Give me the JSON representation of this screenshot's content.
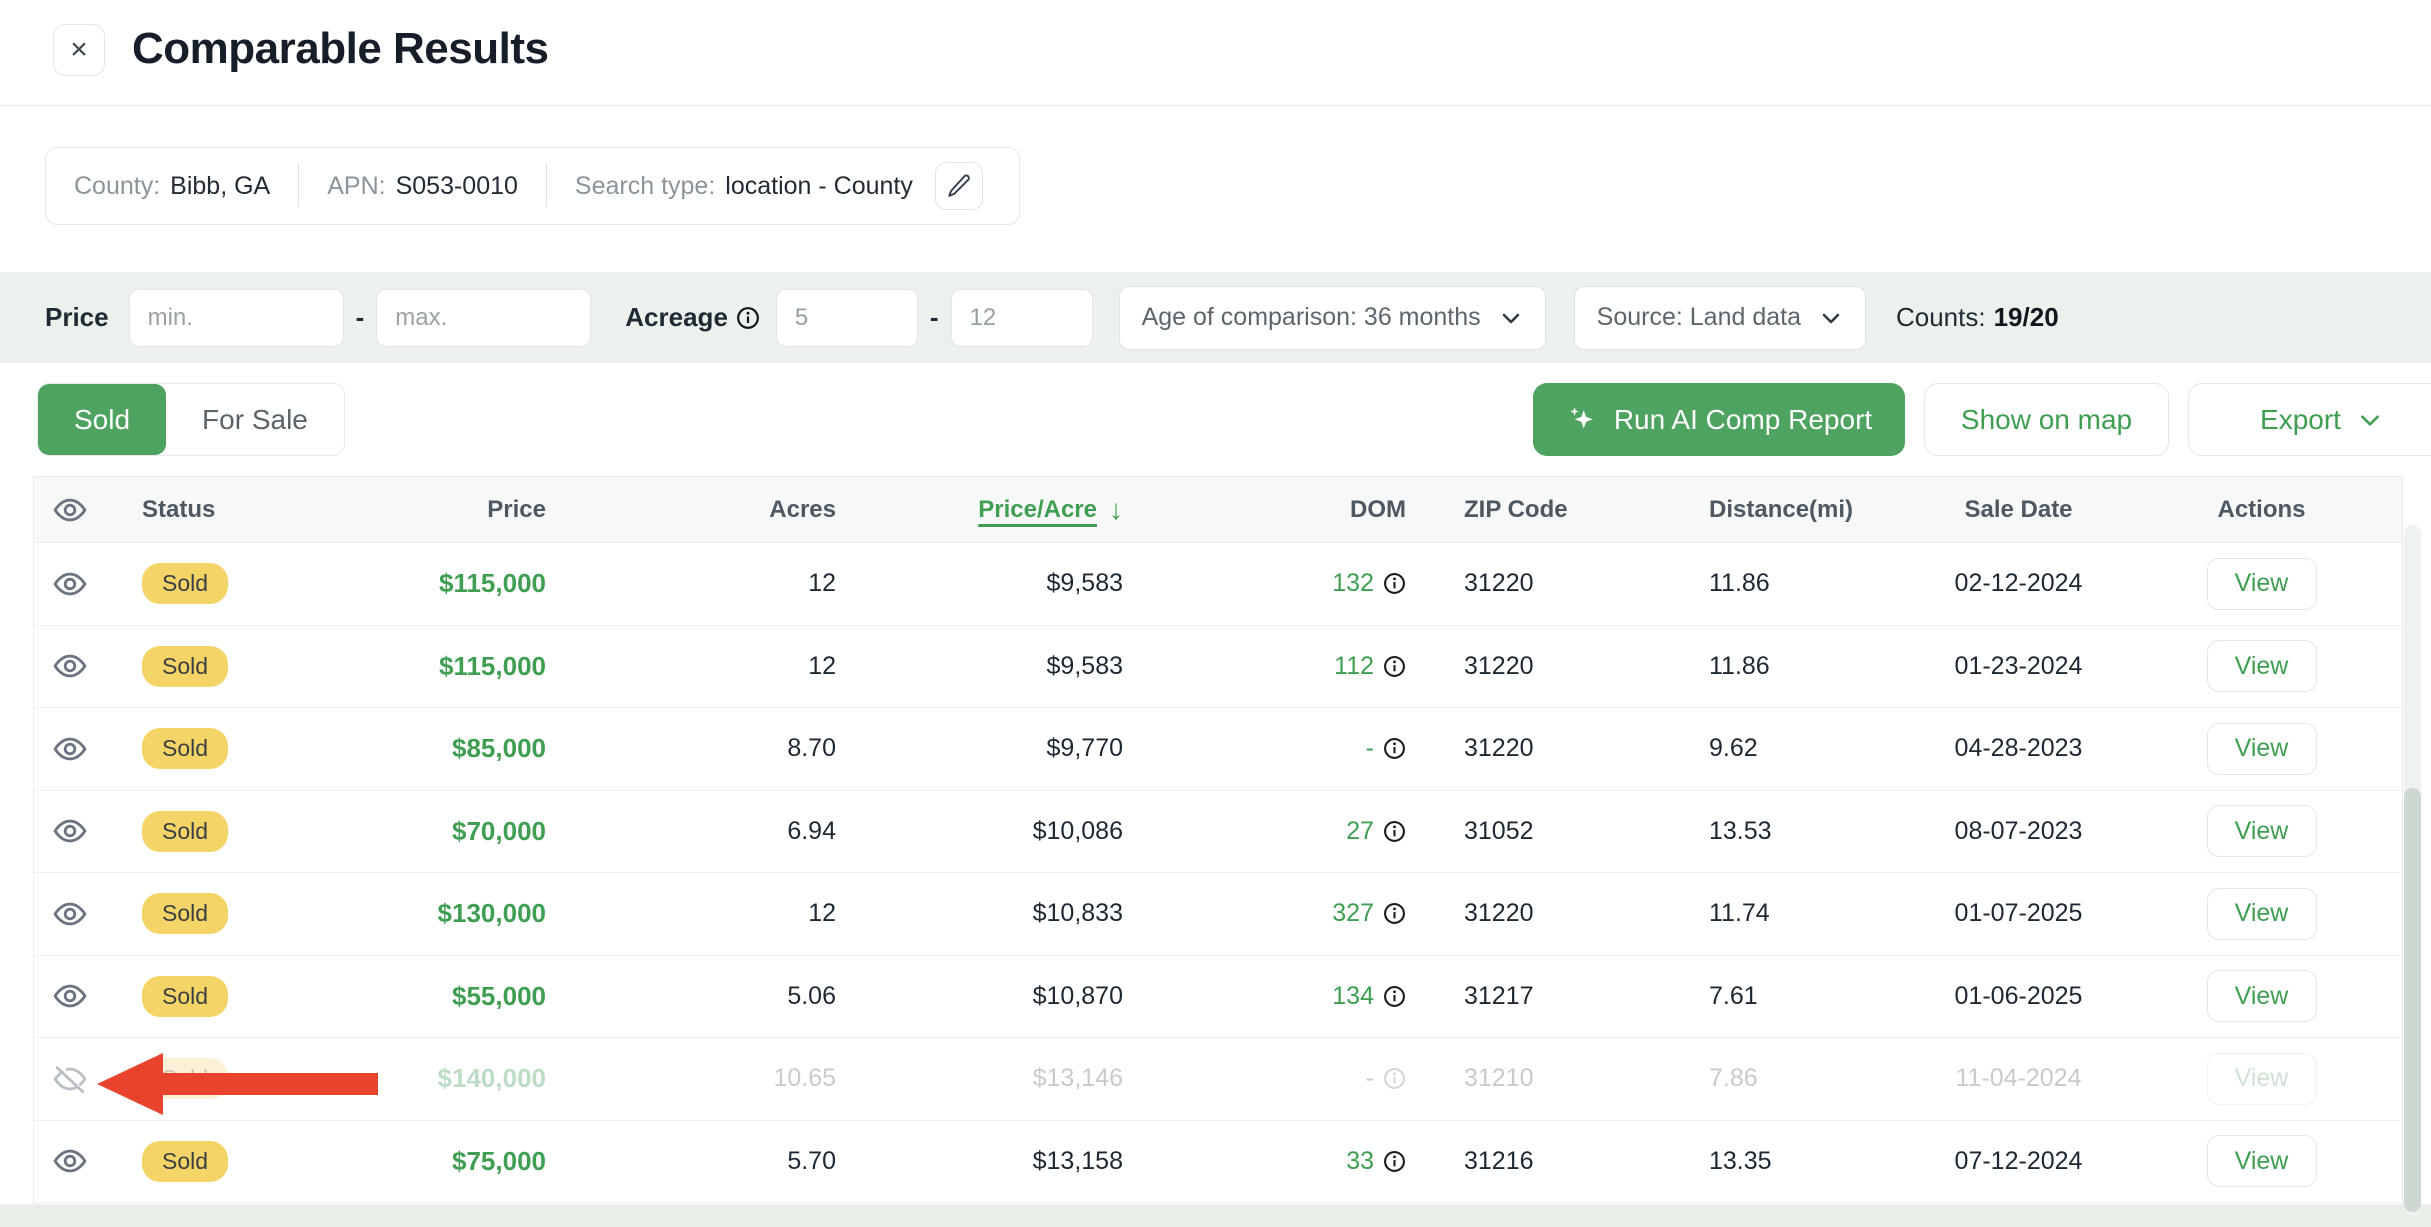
{
  "header": {
    "title": "Comparable Results",
    "close_glyph": "×"
  },
  "summary": {
    "county_label": "County:",
    "county_value": "Bibb, GA",
    "apn_label": "APN:",
    "apn_value": "S053-0010",
    "search_type_label": "Search type:",
    "search_type_value": "location - County"
  },
  "filters": {
    "price_label": "Price",
    "price_min_placeholder": "min.",
    "price_max_placeholder": "max.",
    "dash": "-",
    "acreage_label": "Acreage",
    "acreage_min": "5",
    "acreage_max": "12",
    "age_dropdown_value": "Age of comparison: 36 months",
    "source_dropdown_value": "Source: Land data",
    "counts_label": "Counts:",
    "counts_value": "19/20"
  },
  "tabs": [
    {
      "label": "Sold",
      "active": true
    },
    {
      "label": "For Sale",
      "active": false
    }
  ],
  "actions": {
    "run_ai_label": "Run AI Comp Report",
    "show_on_map_label": "Show on map",
    "export_label": "Export"
  },
  "table": {
    "sort_arrow": "↓",
    "headers": [
      {
        "label": "Status"
      },
      {
        "label": "Price"
      },
      {
        "label": "Acres"
      },
      {
        "label": "Price/Acre",
        "sorted": true
      },
      {
        "label": "DOM"
      },
      {
        "label": "ZIP Code"
      },
      {
        "label": "Distance(mi)"
      },
      {
        "label": "Sale Date"
      },
      {
        "label": "Actions"
      }
    ],
    "view_label": "View",
    "rows": [
      {
        "status": "Sold",
        "price": "$115,000",
        "acres": "12",
        "price_per_acre": "$9,583",
        "dom": "132",
        "zip": "31220",
        "distance": "11.86",
        "sale_date": "02-12-2024",
        "hidden": false
      },
      {
        "status": "Sold",
        "price": "$115,000",
        "acres": "12",
        "price_per_acre": "$9,583",
        "dom": "112",
        "zip": "31220",
        "distance": "11.86",
        "sale_date": "01-23-2024",
        "hidden": false
      },
      {
        "status": "Sold",
        "price": "$85,000",
        "acres": "8.70",
        "price_per_acre": "$9,770",
        "dom": "-",
        "zip": "31220",
        "distance": "9.62",
        "sale_date": "04-28-2023",
        "hidden": false
      },
      {
        "status": "Sold",
        "price": "$70,000",
        "acres": "6.94",
        "price_per_acre": "$10,086",
        "dom": "27",
        "zip": "31052",
        "distance": "13.53",
        "sale_date": "08-07-2023",
        "hidden": false
      },
      {
        "status": "Sold",
        "price": "$130,000",
        "acres": "12",
        "price_per_acre": "$10,833",
        "dom": "327",
        "zip": "31220",
        "distance": "11.74",
        "sale_date": "01-07-2025",
        "hidden": false
      },
      {
        "status": "Sold",
        "price": "$55,000",
        "acres": "5.06",
        "price_per_acre": "$10,870",
        "dom": "134",
        "zip": "31217",
        "distance": "7.61",
        "sale_date": "01-06-2025",
        "hidden": false
      },
      {
        "status": "Sold",
        "price": "$140,000",
        "acres": "10.65",
        "price_per_acre": "$13,146",
        "dom": "-",
        "zip": "31210",
        "distance": "7.86",
        "sale_date": "11-04-2024",
        "hidden": true
      },
      {
        "status": "Sold",
        "price": "$75,000",
        "acres": "5.70",
        "price_per_acre": "$13,158",
        "dom": "33",
        "zip": "31216",
        "distance": "13.35",
        "sale_date": "07-12-2024",
        "hidden": false
      }
    ]
  },
  "colors": {
    "accent_green": "#3f9e52",
    "button_green": "#4da35f",
    "badge_yellow": "#f4d466",
    "arrow_red": "#e8432c",
    "filter_bg": "#edf1ee",
    "strip_green": "#e8efe9"
  }
}
